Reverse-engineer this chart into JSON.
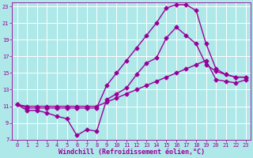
{
  "xlabel": "Windchill (Refroidissement éolien,°C)",
  "bg_color": "#aee8e8",
  "line_color": "#990099",
  "grid_color": "#ffffff",
  "xlim": [
    -0.5,
    23.5
  ],
  "ylim": [
    7,
    23.5
  ],
  "xticks": [
    0,
    1,
    2,
    3,
    4,
    5,
    6,
    7,
    8,
    9,
    10,
    11,
    12,
    13,
    14,
    15,
    16,
    17,
    18,
    19,
    20,
    21,
    22,
    23
  ],
  "yticks": [
    7,
    9,
    11,
    13,
    15,
    17,
    19,
    21,
    23
  ],
  "line1_x": [
    0,
    1,
    2,
    3,
    4,
    5,
    6,
    7,
    8,
    9,
    10,
    11,
    12,
    13,
    14,
    15,
    16,
    17,
    18,
    19,
    20,
    21,
    22,
    23
  ],
  "line1_y": [
    11.2,
    10.5,
    10.5,
    10.2,
    9.8,
    9.5,
    7.5,
    8.2,
    8.0,
    11.8,
    12.5,
    13.2,
    14.8,
    16.2,
    16.8,
    19.2,
    20.5,
    19.5,
    18.5,
    16.0,
    15.2,
    14.8,
    14.5,
    14.5
  ],
  "line2_x": [
    0,
    1,
    2,
    3,
    4,
    5,
    6,
    7,
    8,
    9,
    10,
    11,
    12,
    13,
    14,
    15,
    16,
    17,
    18,
    19,
    20,
    21,
    22,
    23
  ],
  "line2_y": [
    11.2,
    10.8,
    10.8,
    10.8,
    10.8,
    10.8,
    10.8,
    10.8,
    10.8,
    13.5,
    15.0,
    16.5,
    18.0,
    19.5,
    21.0,
    22.8,
    23.2,
    23.2,
    22.5,
    18.5,
    15.5,
    14.8,
    14.5,
    14.5
  ],
  "line3_x": [
    0,
    1,
    2,
    3,
    4,
    5,
    6,
    7,
    8,
    9,
    10,
    11,
    12,
    13,
    14,
    15,
    16,
    17,
    18,
    19,
    20,
    21,
    22,
    23
  ],
  "line3_y": [
    11.2,
    11.0,
    11.0,
    11.0,
    11.0,
    11.0,
    11.0,
    11.0,
    11.0,
    11.5,
    12.0,
    12.5,
    13.0,
    13.5,
    14.0,
    14.5,
    15.0,
    15.5,
    16.0,
    16.5,
    14.2,
    14.0,
    13.8,
    14.2
  ],
  "marker": "D",
  "markersize": 2.5,
  "linewidth": 1.0,
  "tick_fontsize": 5.0,
  "xlabel_fontsize": 6.0
}
